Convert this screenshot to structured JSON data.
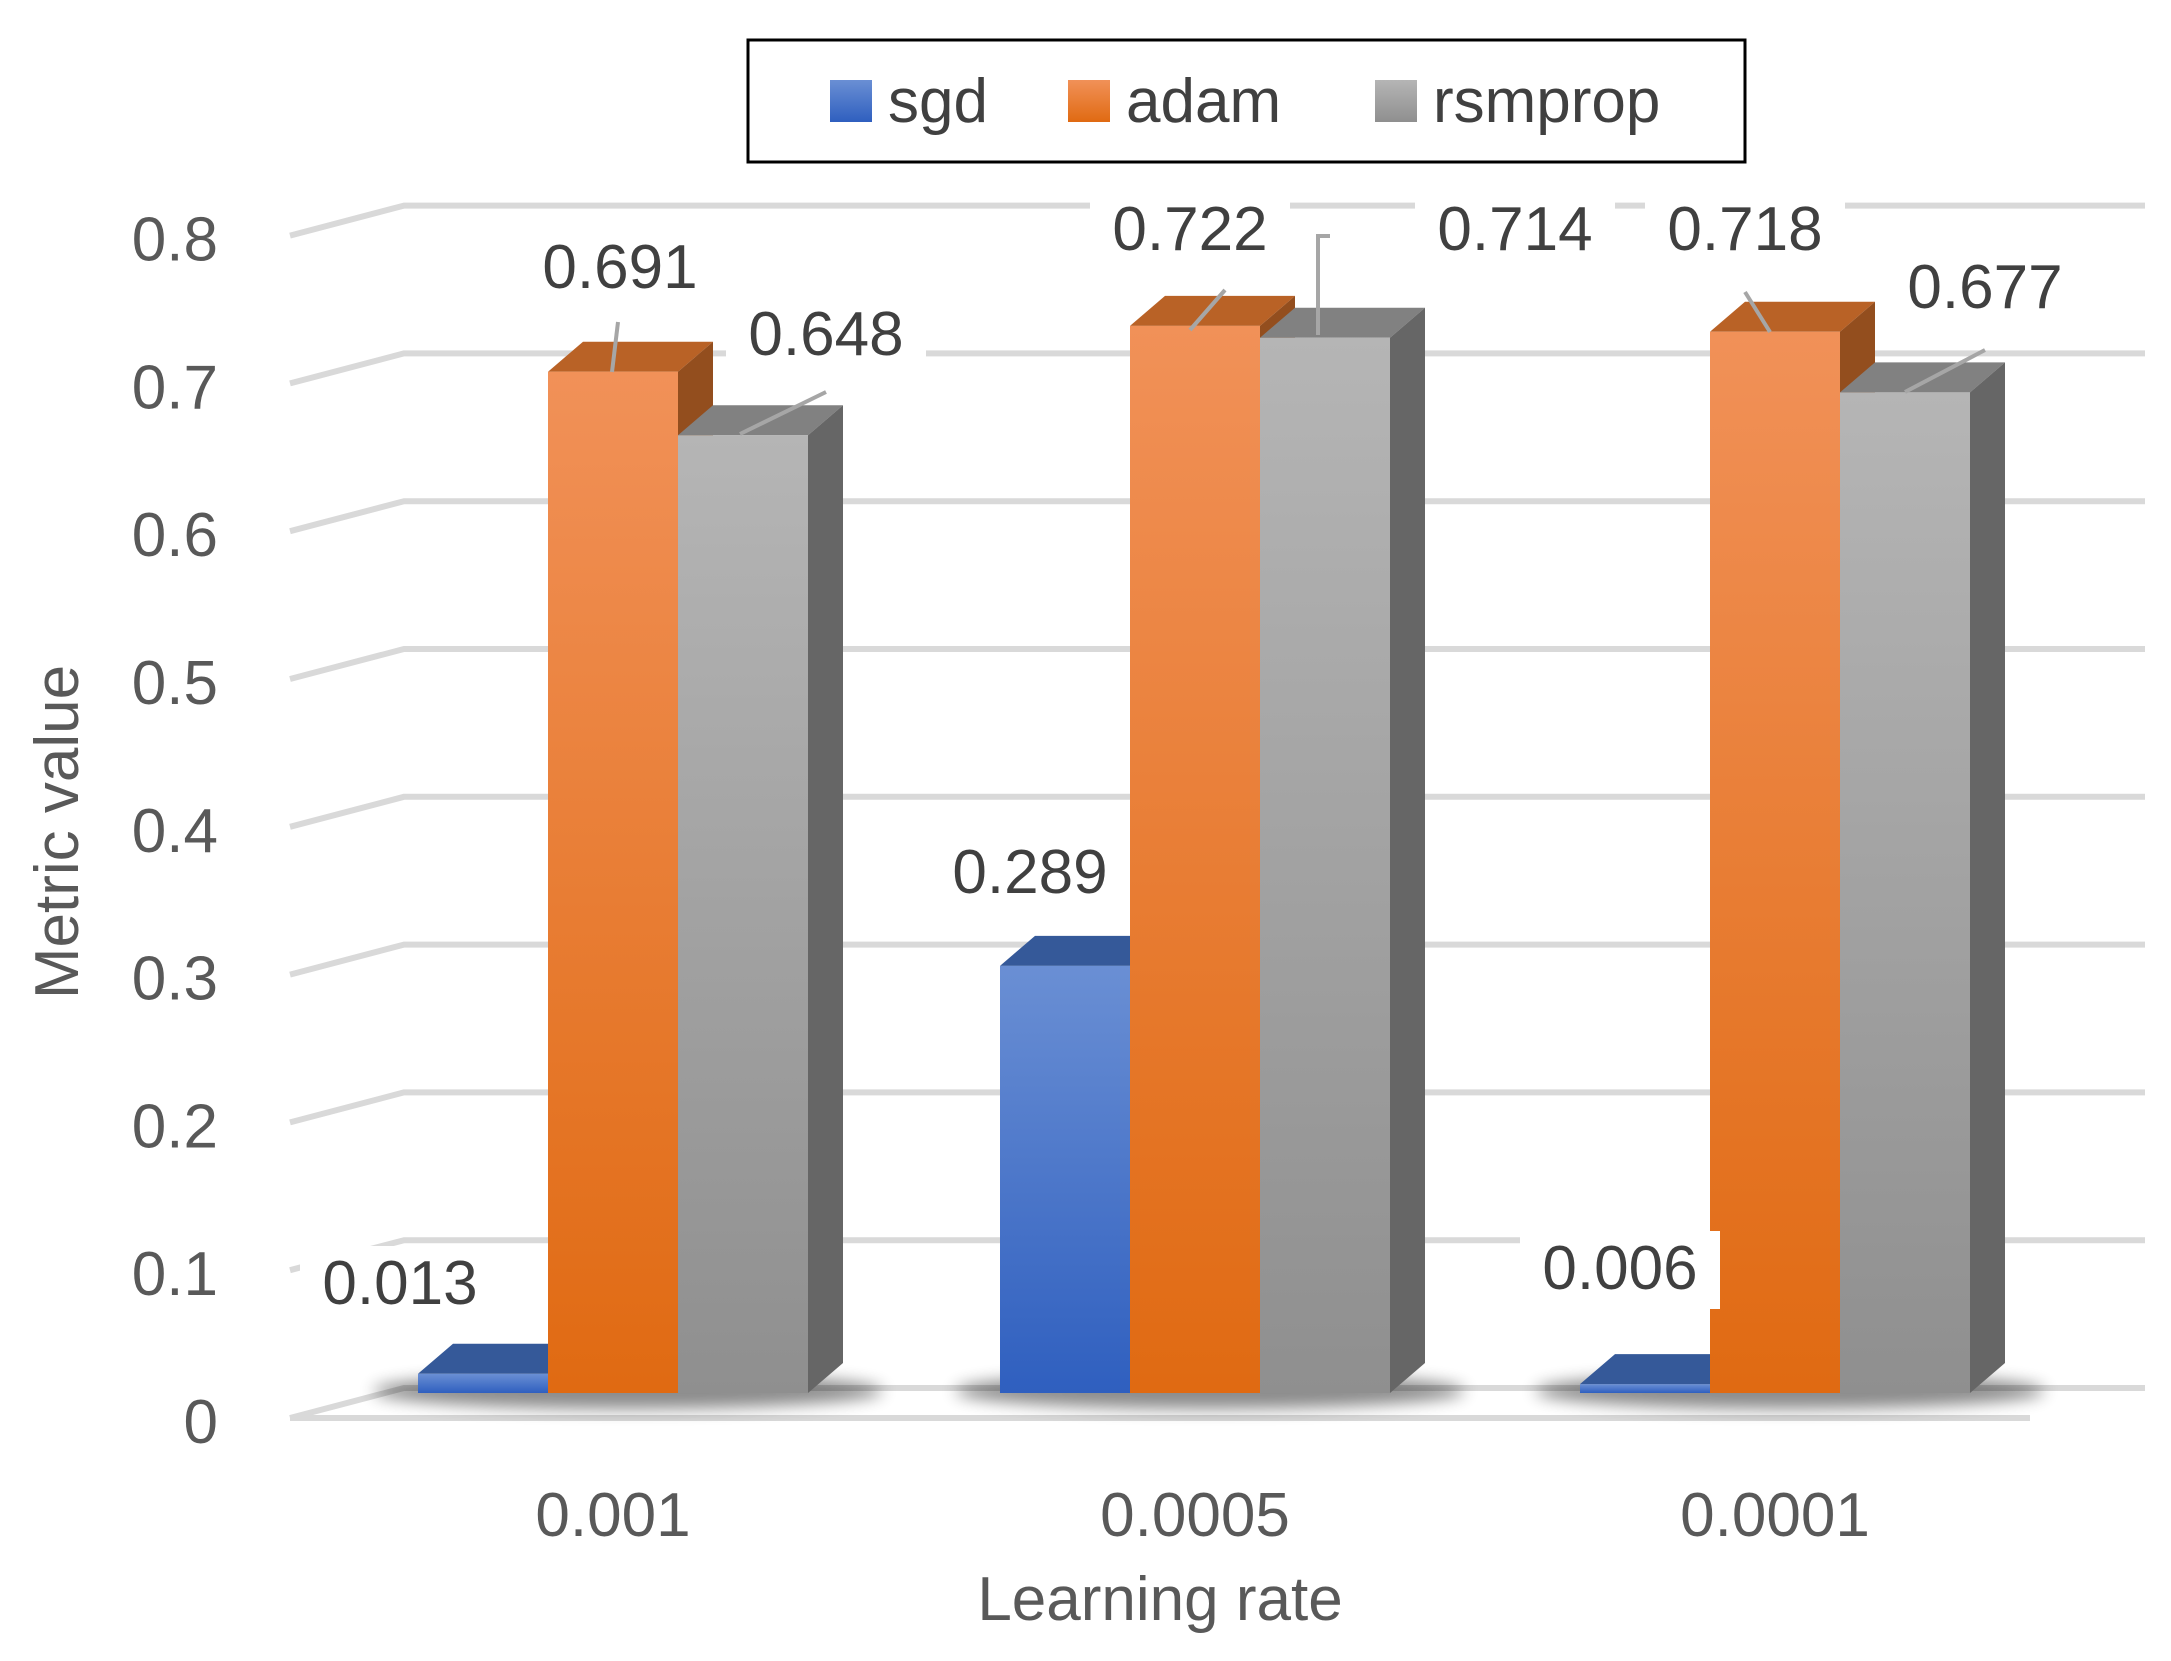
{
  "chart_data": {
    "type": "bar",
    "style": "3d-clustered-column",
    "categories": [
      "0.001",
      "0.0005",
      "0.0001"
    ],
    "series": [
      {
        "name": "sgd",
        "values": [
          0.013,
          0.289,
          0.006
        ],
        "labels": [
          "0.013",
          "0.289",
          "0.006"
        ],
        "color": "#4472c4"
      },
      {
        "name": "adam",
        "values": [
          0.691,
          0.722,
          0.718
        ],
        "labels": [
          "0.691",
          "0.722",
          "0.718"
        ],
        "color": "#ed7d31"
      },
      {
        "name": "rsmprop",
        "values": [
          0.648,
          0.714,
          0.677
        ],
        "labels": [
          "0.648",
          "0.714",
          "0.677"
        ],
        "color": "#a5a5a5"
      }
    ],
    "title": "",
    "xlabel": "Learning rate",
    "ylabel": "Metric value",
    "ylim": [
      0,
      0.8
    ],
    "yticks": [
      "0",
      "0.1",
      "0.2",
      "0.3",
      "0.4",
      "0.5",
      "0.6",
      "0.7",
      "0.8"
    ],
    "grid": true,
    "legend_position": "top"
  }
}
